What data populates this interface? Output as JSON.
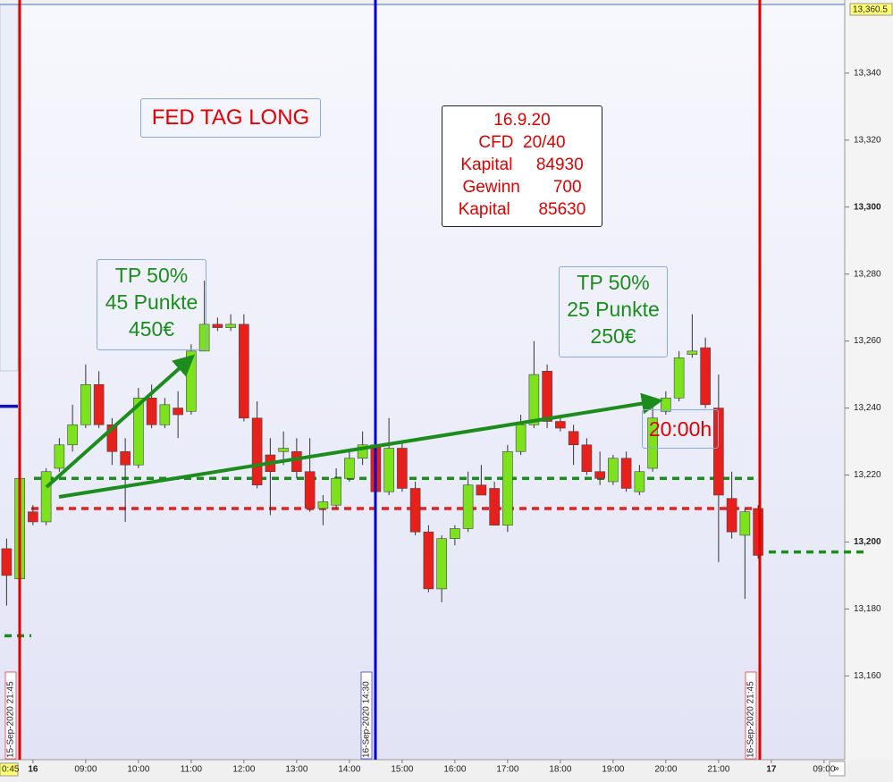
{
  "chart_data": {
    "type": "candlestick",
    "categories": [
      null,
      null,
      "16",
      null,
      null,
      null,
      "09:00",
      null,
      null,
      null,
      "10:00",
      null,
      null,
      null,
      "11:00",
      null,
      null,
      null,
      "12:00",
      null,
      null,
      null,
      "13:00",
      null,
      null,
      null,
      "14:00",
      null,
      null,
      null,
      "15:00",
      null,
      null,
      null,
      "16:00",
      null,
      null,
      null,
      "17:00",
      null,
      null,
      null,
      "18:00",
      null,
      null,
      null,
      "19:00",
      null,
      null,
      null,
      "20:00",
      null,
      null,
      null,
      "21:00",
      null,
      null,
      null,
      "17",
      null,
      null,
      null,
      "09:00",
      null
    ],
    "open": [
      13198,
      13189,
      13209,
      13206,
      13222,
      13229,
      13235,
      13247,
      13235,
      13227,
      13223,
      13243,
      13235,
      13240,
      13239,
      13257,
      13265,
      13264,
      13265,
      13237,
      13226,
      13227,
      13227,
      13221,
      13210,
      13211,
      13219,
      13225,
      13229,
      13215,
      13228,
      13216,
      13203,
      13186,
      13201,
      13204,
      13217,
      13216,
      13205,
      13227,
      13235,
      13251,
      13236,
      13233,
      13229,
      13221,
      13218,
      13225,
      13215,
      13222,
      13239,
      13243,
      13256,
      13258,
      13240,
      13213,
      13202,
      13210,
      null,
      null,
      null,
      null,
      null,
      null
    ],
    "high": [
      13201,
      13221,
      13211,
      13222,
      13231,
      13241,
      13253,
      13251,
      13237,
      13231,
      13246,
      13247,
      13243,
      13245,
      13259,
      13278,
      13267,
      13268,
      13268,
      13242,
      13231,
      13233,
      13231,
      13231,
      13214,
      13222,
      13227,
      13233,
      13230,
      13237,
      13230,
      13218,
      13205,
      13202,
      13205,
      13221,
      13223,
      13218,
      13229,
      13238,
      13260,
      13253,
      13238,
      13235,
      13231,
      13227,
      13226,
      13227,
      13223,
      13243,
      13245,
      13257,
      13268,
      13261,
      13250,
      13221,
      13210,
      13211,
      null,
      null,
      null,
      null,
      null,
      null
    ],
    "low": [
      13181,
      13188,
      13205,
      13205,
      13221,
      13227,
      13234,
      13234,
      13223,
      13206,
      13222,
      13234,
      13234,
      13231,
      13238,
      13257,
      13263,
      13263,
      13236,
      13216,
      13208,
      13223,
      13219,
      13209,
      13205,
      13210,
      13218,
      13223,
      13213,
      13214,
      13215,
      13202,
      13185,
      13182,
      13199,
      13203,
      13214,
      13205,
      13203,
      13226,
      13234,
      13234,
      13233,
      13223,
      13220,
      13217,
      13217,
      13215,
      13214,
      13221,
      13238,
      13242,
      13255,
      13240,
      13194,
      13201,
      13183,
      13195,
      null,
      null,
      null,
      null,
      null,
      null
    ],
    "close": [
      13190,
      13219,
      13206,
      13221,
      13229,
      13235,
      13247,
      13235,
      13227,
      13223,
      13243,
      13235,
      13241,
      13238,
      13257,
      13265,
      13264,
      13265,
      13237,
      13217,
      13221,
      13228,
      13221,
      13210,
      13212,
      13219,
      13225,
      13229,
      13215,
      13228,
      13216,
      13203,
      13186,
      13201,
      13204,
      13217,
      13214,
      13205,
      13227,
      13235,
      13250,
      13236,
      13234,
      13229,
      13221,
      13219,
      13225,
      13216,
      13221,
      13237,
      13243,
      13255,
      13257,
      13241,
      13214,
      13203,
      13209,
      13196,
      null,
      null,
      null,
      null,
      null,
      null
    ],
    "up_color": "#7be21c",
    "down_color": "#e8201c",
    "ylim": [
      13135,
      13360.5
    ],
    "yticks": [
      {
        "value": 13160,
        "label": "13,160"
      },
      {
        "value": 13180,
        "label": "13,180"
      },
      {
        "value": 13200,
        "label": "13,200"
      },
      {
        "value": 13220,
        "label": "13,220"
      },
      {
        "value": 13240,
        "label": "13,240"
      },
      {
        "value": 13260,
        "label": "13,260"
      },
      {
        "value": 13280,
        "label": "13,280"
      },
      {
        "value": 13300,
        "label": "13,300"
      },
      {
        "value": 13320,
        "label": "13,320"
      },
      {
        "value": 13340,
        "label": "13,340"
      }
    ],
    "top_marker": {
      "value": 13360.5,
      "label": "13,360.5"
    },
    "left_time_marker": "0:45",
    "levels": [
      {
        "value": 13219,
        "color": "#1c8c1c"
      },
      {
        "value": 13210,
        "color": "#e52020"
      },
      {
        "value": 13197,
        "color": "#1c8c1c"
      },
      {
        "value": 13172,
        "color": "#1c8c1c"
      },
      {
        "value": 13240.5,
        "color": "#1010c0"
      }
    ],
    "session_lines": [
      {
        "label": "15-Sep-2020 21:45",
        "color": "#e00000"
      },
      {
        "label": "16-Sep-2020 14:30",
        "color": "#0000c8"
      },
      {
        "label": "16-Sep-2020 21:45",
        "color": "#e00000"
      }
    ],
    "annotations": {
      "title_box": "FED TAG LONG",
      "info_box": [
        "16.9.20",
        "CFD  20/40",
        "Kapital     84930",
        "Gewinn       700",
        "Kapital      85630"
      ],
      "tp_box_1": [
        "TP 50%",
        "45 Punkte",
        "450€"
      ],
      "tp_box_2": [
        "TP 50%",
        "25 Punkte",
        "250€"
      ],
      "time_note": "20:00h"
    },
    "scroll_button": "»"
  }
}
